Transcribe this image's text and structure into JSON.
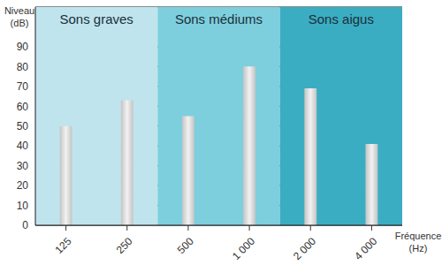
{
  "chart_data": {
    "type": "bar",
    "x_label": "Fréquence (Hz)",
    "y_label": "Niveau (dB)",
    "categories": [
      "125",
      "250",
      "500",
      "1 000",
      "2 000",
      "4 000"
    ],
    "values": [
      50,
      63,
      55,
      80,
      69,
      41
    ],
    "color": "#c4c4c4",
    "ylim": [
      0,
      110
    ],
    "yticks": [
      0,
      10,
      20,
      30,
      40,
      50,
      60,
      70,
      80,
      90
    ],
    "grid": true,
    "annotations": [
      {
        "text": "Sons graves",
        "from": "125",
        "to": "250",
        "color": "#bfe4ee"
      },
      {
        "text": "Sons médiums",
        "from": "500",
        "to": "1 000",
        "color": "#7ecfdd"
      },
      {
        "text": "Sons aigus",
        "from": "2 000",
        "to": "4 000",
        "color": "#3badc2"
      }
    ]
  }
}
